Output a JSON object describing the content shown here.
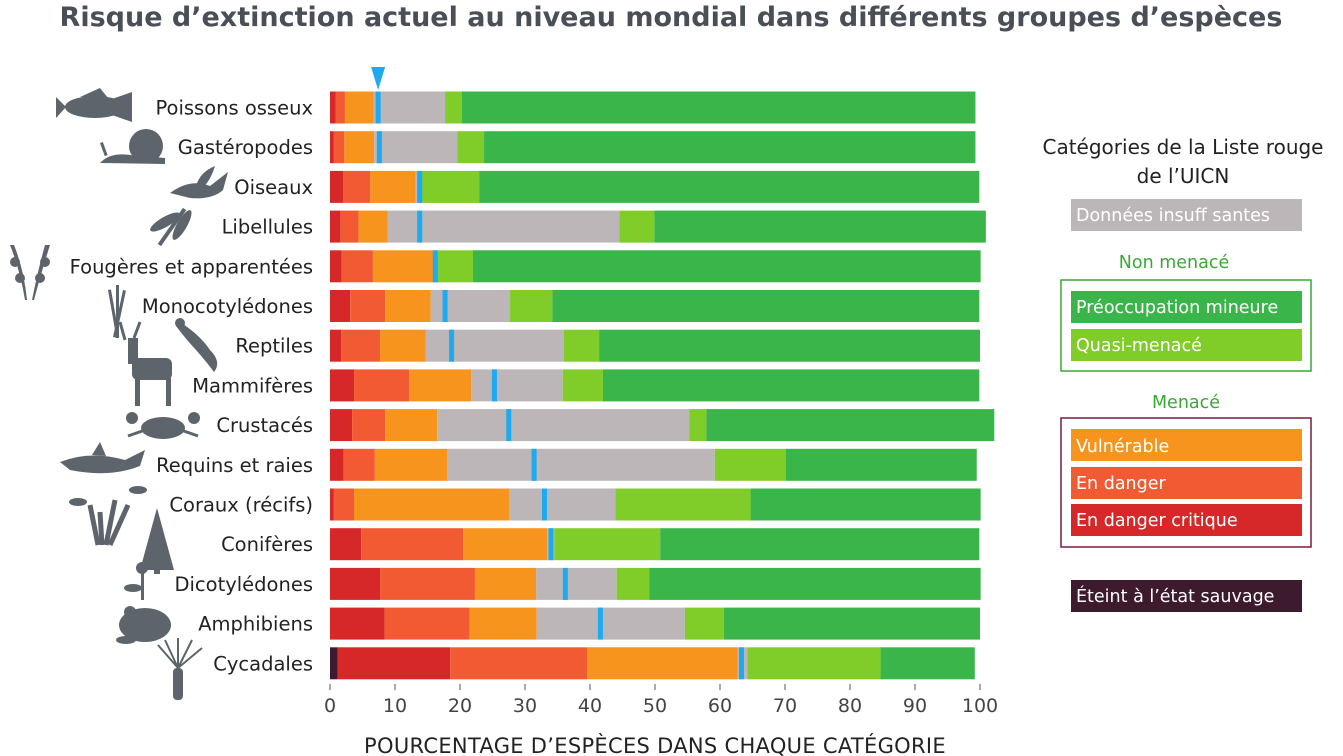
{
  "chart_data": {
    "type": "bar",
    "orientation": "horizontal",
    "stacked": true,
    "title": "Risque d’extinction actuel au niveau mondial dans différents groupes d’espèces",
    "xlabel": "POURCENTAGE D’ESPÈCES DANS CHAQUE CATÉGORIE",
    "xlim": [
      0,
      100
    ],
    "xticks": [
      0,
      10,
      20,
      30,
      40,
      50,
      60,
      70,
      80,
      90,
      100
    ],
    "categories": [
      "Poissons osseux",
      "Gastéropodes",
      "Oiseaux",
      "Libellules",
      "Fougères et apparentées",
      "Monocotylédones",
      "Reptiles",
      "Mammifères",
      "Crustacés",
      "Requins et raies",
      "Coraux (récifs)",
      "Conifères",
      "Dicotylédones",
      "Amphibiens",
      "Cycadales"
    ],
    "series": [
      {
        "name": "Éteint à l’état sauvage",
        "color": "#3d1a2e",
        "values": [
          0,
          0,
          0,
          0,
          0,
          0,
          0,
          0,
          0,
          0,
          0,
          0,
          0,
          0,
          1.2
        ]
      },
      {
        "name": "En danger critique",
        "color": "#d62828",
        "values": [
          0.9,
          0.6,
          2.0,
          1.6,
          1.8,
          3.1,
          1.7,
          3.7,
          3.4,
          2.1,
          0.6,
          4.8,
          7.7,
          8.4,
          17.3
        ]
      },
      {
        "name": "En danger",
        "color": "#f15a32",
        "values": [
          1.4,
          1.6,
          4.2,
          2.8,
          4.8,
          5.4,
          6.0,
          8.5,
          5.1,
          4.8,
          3.1,
          15.7,
          14.6,
          13.1,
          21.1
        ]
      },
      {
        "name": "Vulnérable",
        "color": "#f7941d",
        "values": [
          4.4,
          4.6,
          7.0,
          4.5,
          9.4,
          7.0,
          7.0,
          9.5,
          8.0,
          11.1,
          23.9,
          12.9,
          9.4,
          10.3,
          23.1
        ]
      },
      {
        "name": "Données insuff santes",
        "color": "#bcb6b8",
        "values": [
          11.0,
          12.8,
          0.8,
          35.6,
          0.4,
          12.2,
          21.3,
          14.1,
          38.8,
          41.2,
          16.3,
          1.1,
          12.4,
          22.8,
          1.5
        ]
      },
      {
        "name": "Quasi-menacé",
        "color": "#80cc28",
        "values": [
          2.6,
          4.1,
          9.0,
          5.4,
          5.6,
          6.5,
          5.4,
          6.2,
          2.6,
          10.9,
          20.8,
          16.3,
          5.0,
          6.0,
          20.5
        ]
      },
      {
        "name": "Préoccupation mineure",
        "color": "#39b549",
        "values": [
          79.0,
          75.6,
          76.9,
          51.0,
          78.1,
          65.7,
          58.6,
          57.9,
          44.3,
          29.4,
          35.4,
          49.1,
          51.0,
          39.4,
          14.5
        ]
      }
    ],
    "median_marker_color": "#1eaaf1",
    "median_markers": [
      7.4,
      7.6,
      13.8,
      13.8,
      16.2,
      17.7,
      18.7,
      25.3,
      27.5,
      31.4,
      33.0,
      34.0,
      36.2,
      41.6,
      63.3
    ],
    "top_marker_x": 7.4,
    "legend": {
      "title_line1": "Catégories de la Liste rouge",
      "title_line2": "de l’UICN",
      "data_deficient": "Données insuff santes",
      "not_threatened_heading": "Non menacé",
      "not_threatened_color": "#39a935",
      "not_threatened_items": [
        "Préoccupation mineure",
        "Quasi-menacé"
      ],
      "threatened_heading": "Menacé",
      "threatened_color": "#7b1c3e",
      "threatened_items": [
        "Vulnérable",
        "En danger",
        "En danger critique"
      ],
      "extinct_in_wild": "Éteint à l’état sauvage"
    }
  }
}
